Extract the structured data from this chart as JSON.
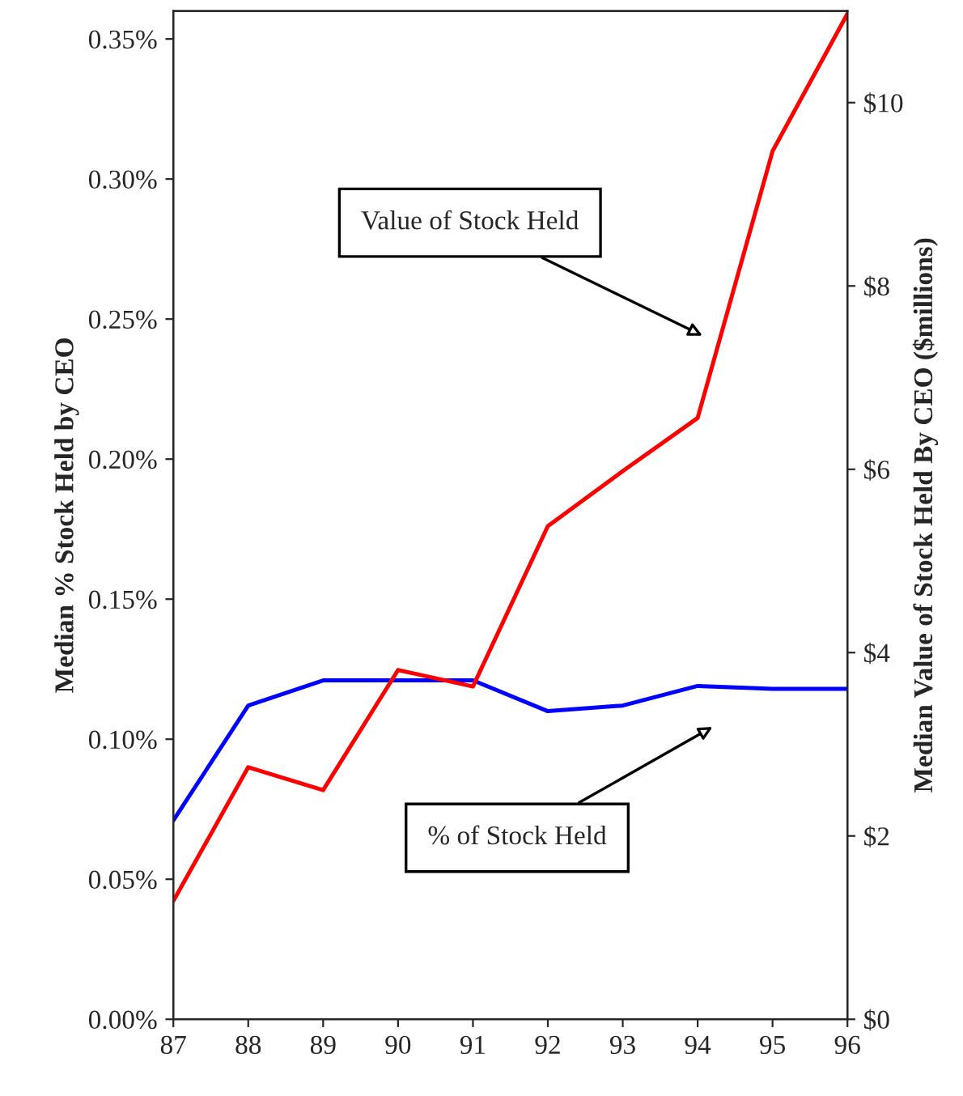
{
  "chart_data": {
    "type": "line",
    "ylabel": "Median % Stock Held by CEO",
    "y2label": "Median Value of Stock Held By CEO ($millions)",
    "x": [
      87,
      88,
      89,
      90,
      91,
      92,
      93,
      94,
      95,
      96
    ],
    "xlim": [
      87,
      96
    ],
    "xticks": [
      87,
      88,
      89,
      90,
      91,
      92,
      93,
      94,
      95,
      96
    ],
    "ylim": [
      0,
      0.36
    ],
    "yticks": [
      {
        "value": 0,
        "label": "0.00%"
      },
      {
        "value": 0.05,
        "label": "0.05%"
      },
      {
        "value": 0.1,
        "label": "0.10%"
      },
      {
        "value": 0.15,
        "label": "0.15%"
      },
      {
        "value": 0.2,
        "label": "0.20%"
      },
      {
        "value": 0.25,
        "label": "0.25%"
      },
      {
        "value": 0.3,
        "label": "0.30%"
      },
      {
        "value": 0.35,
        "label": "0.35%"
      }
    ],
    "y2lim": [
      0,
      11
    ],
    "y2ticks": [
      {
        "value": 0,
        "label": "$0"
      },
      {
        "value": 2,
        "label": "$2"
      },
      {
        "value": 4,
        "label": "$4"
      },
      {
        "value": 6,
        "label": "$6"
      },
      {
        "value": 8,
        "label": "$8"
      },
      {
        "value": 10,
        "label": "$10"
      }
    ],
    "series": [
      {
        "color": "#0000ff",
        "values": [
          0.071,
          0.112,
          0.121,
          0.121,
          0.121,
          0.11,
          0.112,
          0.119,
          0.118,
          0.118
        ]
      },
      {
        "color": "#ff0000",
        "axis": "y2",
        "values": [
          1.29,
          2.75,
          2.5,
          3.81,
          3.63,
          5.38,
          5.98,
          6.56,
          9.47,
          10.97
        ]
      }
    ],
    "annotations": [
      "Value of Stock Held",
      "% of Stock Held"
    ],
    "grid": false,
    "legend": false,
    "marker": "none",
    "line_style": "solid"
  }
}
